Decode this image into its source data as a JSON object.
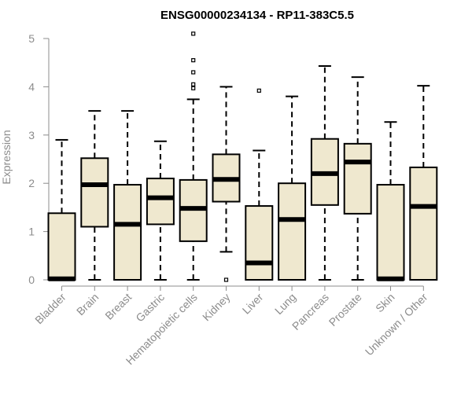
{
  "chart_data": {
    "type": "boxplot",
    "title": "ENSG00000234134 - RP11-383C5.5",
    "xlabel": "",
    "ylabel": "Expression",
    "ylim": [
      0,
      5.1
    ],
    "yticks": [
      0,
      1,
      2,
      3,
      4,
      5
    ],
    "ytick_labels": [
      "0",
      "1",
      "2",
      "3",
      "4",
      "5"
    ],
    "grid": false,
    "legend": "none",
    "colors": {
      "box_fill": "#efe8cf",
      "box_stroke": "#000000",
      "median": "#000000",
      "axis": "#8c8c8c"
    },
    "categories": [
      "Bladder",
      "Brain",
      "Breast",
      "Gastric",
      "Hematopoietic cells",
      "Kidney",
      "Liver",
      "Lung",
      "Pancreas",
      "Prostate",
      "Skin",
      "Unknown / Other"
    ],
    "boxes": [
      {
        "category": "Bladder",
        "whisker_low": 0,
        "q1": 0,
        "median": 0.02,
        "q3": 1.38,
        "whisker_high": 2.9,
        "outliers": []
      },
      {
        "category": "Brain",
        "whisker_low": 0,
        "q1": 1.1,
        "median": 1.97,
        "q3": 2.52,
        "whisker_high": 3.5,
        "outliers": []
      },
      {
        "category": "Breast",
        "whisker_low": 0,
        "q1": 0,
        "median": 1.15,
        "q3": 1.97,
        "whisker_high": 3.5,
        "outliers": []
      },
      {
        "category": "Gastric",
        "whisker_low": 0,
        "q1": 1.15,
        "median": 1.7,
        "q3": 2.1,
        "whisker_high": 2.87,
        "outliers": []
      },
      {
        "category": "Hematopoietic cells",
        "whisker_low": 0,
        "q1": 0.8,
        "median": 1.48,
        "q3": 2.07,
        "whisker_high": 3.74,
        "outliers": [
          3.97,
          4.05,
          4.3,
          4.55,
          5.1
        ]
      },
      {
        "category": "Kidney",
        "whisker_low": 0.58,
        "q1": 1.62,
        "median": 2.08,
        "q3": 2.6,
        "whisker_high": 4.0,
        "outliers": [
          0
        ]
      },
      {
        "category": "Liver",
        "whisker_low": 0,
        "q1": 0,
        "median": 0.35,
        "q3": 1.53,
        "whisker_high": 2.68,
        "outliers": [
          3.92
        ]
      },
      {
        "category": "Lung",
        "whisker_low": 0,
        "q1": 0,
        "median": 1.25,
        "q3": 2.0,
        "whisker_high": 3.8,
        "outliers": []
      },
      {
        "category": "Pancreas",
        "whisker_low": 0,
        "q1": 1.55,
        "median": 2.2,
        "q3": 2.92,
        "whisker_high": 4.43,
        "outliers": []
      },
      {
        "category": "Prostate",
        "whisker_low": 0,
        "q1": 1.37,
        "median": 2.44,
        "q3": 2.82,
        "whisker_high": 4.2,
        "outliers": []
      },
      {
        "category": "Skin",
        "whisker_low": 0,
        "q1": 0,
        "median": 0.02,
        "q3": 1.97,
        "whisker_high": 3.27,
        "outliers": []
      },
      {
        "category": "Unknown / Other",
        "whisker_low": 0,
        "q1": 0,
        "median": 1.52,
        "q3": 2.33,
        "whisker_high": 4.02,
        "outliers": []
      }
    ]
  }
}
